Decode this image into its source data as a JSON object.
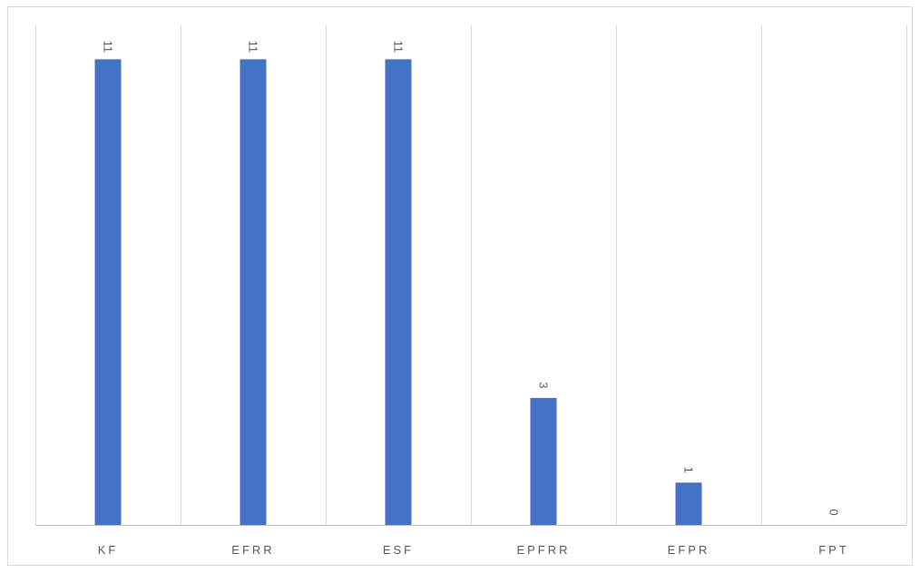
{
  "chart_data": {
    "type": "bar",
    "categories": [
      "KF",
      "EFRR",
      "ESF",
      "EPFRR",
      "EFPR",
      "FPT"
    ],
    "values": [
      11,
      11,
      11,
      3,
      1,
      0
    ],
    "data_labels": [
      "11",
      "11",
      "11",
      "3",
      "1",
      "0"
    ],
    "title": "",
    "xlabel": "",
    "ylabel": "",
    "ylim": [
      0,
      11.8
    ],
    "bar_color": "#4472c4",
    "gridlines": "vertical",
    "data_label_orientation": "rotated-90",
    "legend": "none"
  }
}
